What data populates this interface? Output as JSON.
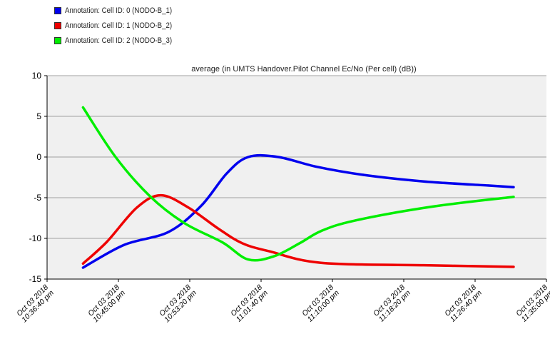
{
  "chart_data": {
    "type": "line",
    "title": "average (in UMTS Handover.Pilot Channel Ec/No (Per cell) (dB))",
    "xlabel": "",
    "ylabel": "",
    "ylim": [
      -15,
      10
    ],
    "yticks": [
      10,
      5,
      0,
      -5,
      -10,
      -15
    ],
    "x_range_minutes": [
      0,
      58.333
    ],
    "xtick_labels": [
      [
        "Oct 03 2018",
        "10:36:40 pm"
      ],
      [
        "Oct 03 2018",
        "10:45:00 pm"
      ],
      [
        "Oct 03 2018",
        "10:53:20 pm"
      ],
      [
        "Oct 03 2018",
        "11:01:40 pm"
      ],
      [
        "Oct 03 2018",
        "11:10:00 pm"
      ],
      [
        "Oct 03 2018",
        "11:18:20 pm"
      ],
      [
        "Oct 03 2018",
        "11:26:40 pm"
      ],
      [
        "Oct 03 2018",
        "11:35:00 pm"
      ]
    ],
    "grid": true,
    "legend_position": "top-left",
    "series": [
      {
        "name": "Annotation: Cell ID: 0 (NODO-B_1)",
        "color": "#0000ee",
        "points": [
          [
            4.2,
            -13.6
          ],
          [
            9,
            -10.8
          ],
          [
            14.2,
            -9.2
          ],
          [
            18,
            -6
          ],
          [
            21,
            -2
          ],
          [
            23.5,
            0
          ],
          [
            27,
            0
          ],
          [
            31.5,
            -1.2
          ],
          [
            37,
            -2.2
          ],
          [
            44,
            -3
          ],
          [
            51.5,
            -3.5
          ],
          [
            54.5,
            -3.7
          ]
        ]
      },
      {
        "name": "Annotation: Cell ID: 1 (NODO-B_2)",
        "color": "#ee0000",
        "points": [
          [
            4.2,
            -13.1
          ],
          [
            7,
            -10.4
          ],
          [
            10.5,
            -6.2
          ],
          [
            13.3,
            -4.7
          ],
          [
            16.5,
            -6.2
          ],
          [
            20,
            -8.8
          ],
          [
            22.8,
            -10.6
          ],
          [
            26,
            -11.6
          ],
          [
            32,
            -13
          ],
          [
            44,
            -13.3
          ],
          [
            54.5,
            -13.5
          ]
        ]
      },
      {
        "name": "Annotation: Cell ID: 2 (NODO-B_3)",
        "color": "#00ee00",
        "points": [
          [
            4.2,
            6.1
          ],
          [
            8,
            0
          ],
          [
            12,
            -4.8
          ],
          [
            16,
            -8.1
          ],
          [
            20.5,
            -10.5
          ],
          [
            23.5,
            -12.6
          ],
          [
            26.5,
            -12.2
          ],
          [
            29.5,
            -10.6
          ],
          [
            32,
            -9.1
          ],
          [
            36,
            -7.8
          ],
          [
            45,
            -6.1
          ],
          [
            54.5,
            -4.9
          ]
        ]
      }
    ]
  },
  "colors": {
    "plot_background": "#f0f0f0",
    "grid": "#a0a0a0"
  }
}
